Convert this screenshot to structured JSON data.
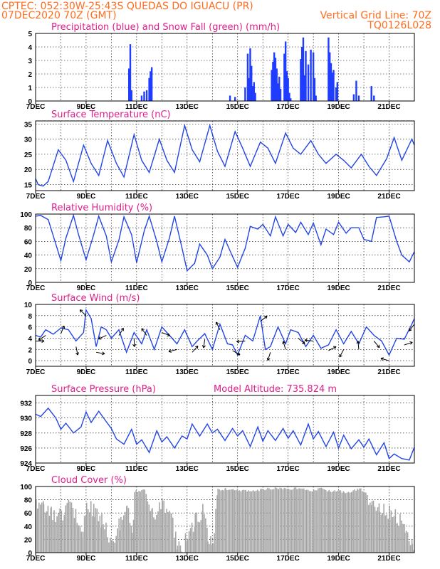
{
  "header": {
    "line1_left": "CPTEC:   052:30W-25:43S   QUEDAS DO IGUACU (PR)",
    "line2_left": "07DEC2020 70Z (GMT)",
    "line2_right": "Vertical Grid Line: 70Z",
    "line3_right": "TQ0126L028"
  },
  "x_tick_labels": [
    "7DEC",
    "9DEC",
    "11DEC",
    "13DEC",
    "15DEC",
    "17DEC",
    "19DEC",
    "21DEC"
  ],
  "colors": {
    "precip": "#1f3cff",
    "snow": "#00a000",
    "line": "#2245e6",
    "cloud": "#a6a6a6",
    "header": "#ff6d1f",
    "titles": "#e01e8c"
  },
  "chart_data": [
    {
      "type": "bar",
      "id": "precip",
      "title": "Precipitation (blue) and Snow Fall (green) (mm/h)",
      "x_units": "day of December 2020",
      "ylim": [
        0,
        5
      ],
      "yticks": [
        0,
        1,
        2,
        3,
        4,
        5
      ],
      "series": [
        {
          "name": "Precipitation",
          "x": [
            10.7,
            10.75,
            10.8,
            11.2,
            11.3,
            11.4,
            11.5,
            11.55,
            11.6,
            14.7,
            14.9,
            15.3,
            15.4,
            15.45,
            15.5,
            15.55,
            15.6,
            15.65,
            15.7,
            16.35,
            16.4,
            16.45,
            16.5,
            16.55,
            16.6,
            16.65,
            16.7,
            16.85,
            16.9,
            16.95,
            17.0,
            17.05,
            17.1,
            17.5,
            17.55,
            17.6,
            17.65,
            17.7,
            17.8,
            17.9,
            18.0,
            18.05,
            18.1,
            18.6,
            18.65,
            18.7,
            18.75,
            18.8,
            18.9,
            18.95,
            19.6,
            19.7,
            19.8,
            20.3,
            20.4
          ],
          "values": [
            2.4,
            4.2,
            0.8,
            0.4,
            0.7,
            0.8,
            1.7,
            2.2,
            2.5,
            0.4,
            0.3,
            1.0,
            3.5,
            1.7,
            3.9,
            2.6,
            1.1,
            1.4,
            0.6,
            2.3,
            2.9,
            3.6,
            3.2,
            2.4,
            1.3,
            1.8,
            0.9,
            3.5,
            4.4,
            2.2,
            1.7,
            0.6,
            0.2,
            3.1,
            4.0,
            4.7,
            1.9,
            3.7,
            2.7,
            3.8,
            3.6,
            1.7,
            0.4,
            4.7,
            3.6,
            2.8,
            2.1,
            2.3,
            1.0,
            1.4,
            0.5,
            1.5,
            0.4,
            1.1,
            0.4
          ]
        },
        {
          "name": "Snow Fall",
          "x": [],
          "values": []
        }
      ]
    },
    {
      "type": "line",
      "id": "temperature",
      "title": "Surface Temperature (nC)",
      "ylim": [
        13,
        36
      ],
      "yticks": [
        15,
        20,
        25,
        30,
        35
      ],
      "x": [
        7.0,
        7.1,
        7.3,
        7.5,
        7.9,
        8.2,
        8.5,
        8.9,
        9.2,
        9.5,
        9.85,
        10.2,
        10.5,
        10.9,
        11.2,
        11.5,
        11.9,
        12.2,
        12.5,
        12.9,
        13.2,
        13.5,
        13.9,
        14.2,
        14.5,
        14.9,
        15.2,
        15.5,
        15.9,
        16.2,
        16.5,
        16.9,
        17.2,
        17.5,
        17.9,
        18.2,
        18.5,
        18.9,
        19.2,
        19.5,
        19.9,
        20.2,
        20.5,
        20.9,
        21.2,
        21.5,
        21.9,
        22.0
      ],
      "values": [
        17,
        15,
        14.5,
        16,
        26.5,
        23,
        16,
        28,
        22,
        18,
        29.5,
        22,
        17.5,
        31.5,
        23,
        19,
        30,
        23,
        19,
        34.5,
        26.5,
        22.5,
        34.5,
        26,
        21,
        32.5,
        27,
        21,
        29,
        27,
        22,
        32,
        27,
        25,
        29.5,
        25,
        22,
        25,
        23,
        20.5,
        25,
        21,
        18,
        23.5,
        30.5,
        23,
        30,
        28
      ]
    },
    {
      "type": "line",
      "id": "humidity",
      "title": "Relative Humidity (%)",
      "ylim": [
        0,
        100
      ],
      "yticks": [
        0,
        20,
        40,
        60,
        80,
        100
      ],
      "x": [
        7.0,
        7.2,
        7.5,
        7.8,
        8.0,
        8.2,
        8.5,
        8.7,
        9.0,
        9.3,
        9.5,
        9.8,
        10.0,
        10.3,
        10.5,
        10.8,
        11.0,
        11.3,
        11.5,
        11.8,
        12.0,
        12.3,
        12.5,
        12.8,
        13.0,
        13.3,
        13.5,
        13.8,
        14.0,
        14.3,
        14.5,
        14.8,
        15.0,
        15.3,
        15.5,
        15.8,
        16.0,
        16.3,
        16.5,
        16.8,
        17.0,
        17.3,
        17.5,
        17.8,
        18.0,
        18.3,
        18.5,
        18.8,
        19.0,
        19.3,
        19.5,
        19.8,
        20.0,
        20.3,
        20.5,
        20.8,
        21.0,
        21.3,
        21.5,
        21.8,
        22.0
      ],
      "values": [
        97,
        98,
        92,
        56,
        32,
        65,
        98,
        70,
        33,
        70,
        97,
        68,
        30,
        62,
        96,
        70,
        29,
        75,
        97,
        60,
        30,
        65,
        97,
        50,
        17,
        28,
        56,
        40,
        20,
        37,
        63,
        38,
        22,
        50,
        82,
        78,
        85,
        68,
        96,
        68,
        85,
        73,
        88,
        70,
        87,
        55,
        78,
        70,
        88,
        72,
        80,
        80,
        63,
        60,
        95,
        96,
        97,
        60,
        40,
        30,
        45
      ]
    },
    {
      "type": "line",
      "id": "wind",
      "title": "Surface Wind (m/s)",
      "ylim": [
        -1,
        10
      ],
      "yticks": [
        0,
        2,
        4,
        6,
        8,
        10
      ],
      "x": [
        7.0,
        7.2,
        7.4,
        7.7,
        8.0,
        8.3,
        8.6,
        8.9,
        9.0,
        9.2,
        9.4,
        9.6,
        9.8,
        10.0,
        10.3,
        10.6,
        10.9,
        11.2,
        11.4,
        11.7,
        12.0,
        12.3,
        12.6,
        12.9,
        13.2,
        13.4,
        13.7,
        14.0,
        14.3,
        14.6,
        14.8,
        15.0,
        15.3,
        15.6,
        15.9,
        16.1,
        16.3,
        16.6,
        16.9,
        17.1,
        17.4,
        17.7,
        18.0,
        18.3,
        18.6,
        18.9,
        19.2,
        19.5,
        19.8,
        20.1,
        20.4,
        20.7,
        21.0,
        21.3,
        21.6,
        21.9,
        22.0
      ],
      "values": [
        4.5,
        4.2,
        5.5,
        4.7,
        5.8,
        5.5,
        3.5,
        5.0,
        9.0,
        7.5,
        2.5,
        6.0,
        5.5,
        4.0,
        5.5,
        1.5,
        5.0,
        3.0,
        5.5,
        2.0,
        6.0,
        4.5,
        3.0,
        5.5,
        2.5,
        3.5,
        4.8,
        2.0,
        6.5,
        3.0,
        2.8,
        1.0,
        4.5,
        3.5,
        8.0,
        2.0,
        2.5,
        6.0,
        3.0,
        5.5,
        5.0,
        2.5,
        4.5,
        2.2,
        2.8,
        5.5,
        3.0,
        5.2,
        3.0,
        6.0,
        4.5,
        3.5,
        1.0,
        4.0,
        3.8,
        6.5,
        7.5
      ]
    },
    {
      "type": "line",
      "id": "pressure",
      "title": "Surface Pressure (hPa)",
      "annotation": "Model Altitude: 735.824 m",
      "ylim": [
        924,
        933
      ],
      "yticks": [
        924,
        926,
        928,
        930,
        932
      ],
      "x": [
        7.0,
        7.2,
        7.5,
        7.8,
        8.0,
        8.2,
        8.5,
        8.8,
        9.0,
        9.2,
        9.5,
        9.8,
        10.0,
        10.2,
        10.5,
        10.8,
        11.0,
        11.2,
        11.5,
        11.8,
        12.0,
        12.2,
        12.5,
        12.8,
        13.0,
        13.2,
        13.5,
        13.8,
        14.0,
        14.2,
        14.5,
        14.8,
        15.0,
        15.2,
        15.5,
        15.8,
        16.0,
        16.2,
        16.5,
        16.8,
        17.0,
        17.2,
        17.5,
        17.8,
        18.0,
        18.2,
        18.5,
        18.8,
        19.0,
        19.2,
        19.5,
        19.8,
        20.0,
        20.2,
        20.5,
        20.8,
        21.0,
        21.2,
        21.5,
        21.8,
        22.0
      ],
      "values": [
        930.5,
        930.2,
        931.3,
        930,
        928.5,
        929.3,
        928,
        928.8,
        930.8,
        929.4,
        930.9,
        929.5,
        928.6,
        927.2,
        926.5,
        928.5,
        926.5,
        927.1,
        925.4,
        928.3,
        926.8,
        927.5,
        926,
        927.6,
        927.2,
        929.2,
        927.6,
        929.2,
        928,
        928.5,
        927,
        928.6,
        927.6,
        928.3,
        926.2,
        928.8,
        926.9,
        928.3,
        927,
        928.6,
        927.3,
        928.3,
        926.4,
        929.2,
        927.2,
        928.2,
        926.2,
        928.1,
        926,
        927.7,
        925.9,
        927.1,
        926.1,
        927.2,
        925.1,
        926.7,
        924.6,
        925.2,
        924.6,
        924.4,
        926.1
      ]
    },
    {
      "type": "area",
      "id": "cloud",
      "title": "Cloud Cover (%)",
      "ylim": [
        0,
        100
      ],
      "yticks": [
        0,
        20,
        40,
        60,
        80,
        100
      ],
      "x": [
        7.0,
        7.3,
        7.6,
        8.0,
        8.4,
        8.8,
        9.0,
        9.3,
        9.6,
        10.0,
        10.3,
        10.6,
        10.8,
        10.9,
        11.3,
        11.6,
        12.0,
        12.3,
        12.6,
        12.8,
        13.0,
        13.3,
        13.6,
        13.8,
        14.0,
        14.2,
        14.5,
        14.8,
        15.0,
        15.3,
        15.6,
        16.0,
        16.3,
        16.6,
        17.0,
        17.3,
        17.6,
        18.0,
        18.3,
        18.6,
        19.0,
        19.2,
        19.5,
        19.8,
        20.0,
        20.3,
        20.6,
        21.0,
        21.3,
        21.6,
        21.9,
        22.0
      ],
      "values": [
        88,
        82,
        72,
        70,
        85,
        45,
        84,
        75,
        62,
        28,
        55,
        82,
        48,
        95,
        96,
        70,
        86,
        78,
        24,
        15,
        42,
        60,
        75,
        38,
        35,
        97,
        98,
        98,
        97,
        95,
        96,
        97,
        99,
        99,
        98,
        99,
        98,
        96,
        99,
        95,
        96,
        93,
        94,
        99,
        93,
        85,
        78,
        72,
        65,
        55,
        30,
        25
      ]
    }
  ]
}
